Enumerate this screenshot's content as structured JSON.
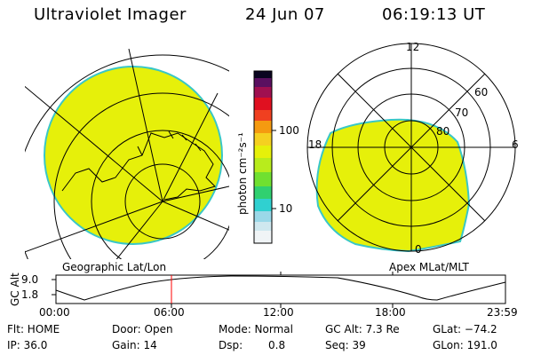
{
  "header": {
    "instrument": "Ultraviolet Imager",
    "date": "24 Jun 07",
    "time": "06:19:13 UT"
  },
  "colorbar": {
    "label": "photon cm⁻²s⁻¹",
    "ticks": [
      "100",
      "10"
    ]
  },
  "left_map": {
    "caption": "Geographic Lat/Lon",
    "fill_color": "#e6f00a"
  },
  "right_map": {
    "caption": "Apex MLat/MLT",
    "mlt_labels": {
      "top": "12",
      "left": "18",
      "right": "6",
      "bottom": "0"
    },
    "lat_labels": [
      "60",
      "70",
      "80"
    ],
    "fill_color": "#e6f00a"
  },
  "altitude_plot": {
    "ylabel": "GC Alt",
    "yticks": [
      "9.0",
      "1.8"
    ],
    "xticks": [
      "00:00",
      "06:00",
      "12:00",
      "18:00",
      "23:59"
    ],
    "marker_color": "#ff0000"
  },
  "status": {
    "flt": "Flt: HOME",
    "ip": "IP: 36.0",
    "door": "Door: Open",
    "gain": "Gain: 14",
    "mode": "Mode: Normal",
    "dsp_label": "Dsp:",
    "dsp_value": "0.8",
    "gc_alt": "GC Alt: 7.3 Re",
    "seq": "Seq: 39",
    "glat": "GLat: −74.2",
    "glon": "GLon: 191.0"
  }
}
